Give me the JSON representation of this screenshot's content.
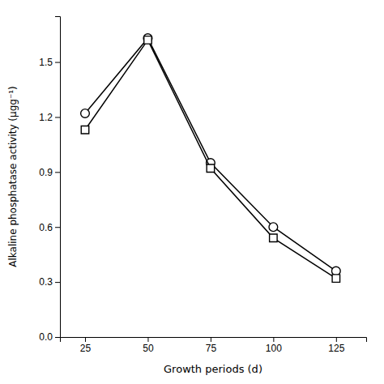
{
  "chart_data": {
    "type": "line",
    "x": [
      25,
      50,
      75,
      100,
      125
    ],
    "series": [
      {
        "color": "#000000",
        "marker": "circle",
        "line_style": "solid",
        "values": [
          1.22,
          1.63,
          0.95,
          0.6,
          0.36
        ]
      },
      {
        "color": "#000000",
        "marker": "square",
        "line_style": "solid",
        "values": [
          1.13,
          1.62,
          0.92,
          0.54,
          0.32
        ]
      }
    ],
    "xlabel": "Growth periods (d)",
    "ylabel": "Alkaline phosphatase activity (μgg⁻¹)",
    "xlim": [
      15,
      137
    ],
    "ylim": [
      0.0,
      1.75
    ],
    "xticks": [
      25,
      50,
      75,
      100,
      125
    ],
    "yticks": [
      {
        "value": 0.0,
        "label": "0.0"
      },
      0.3,
      0.6,
      0.9,
      1.2,
      1.5
    ],
    "grid": false
  }
}
